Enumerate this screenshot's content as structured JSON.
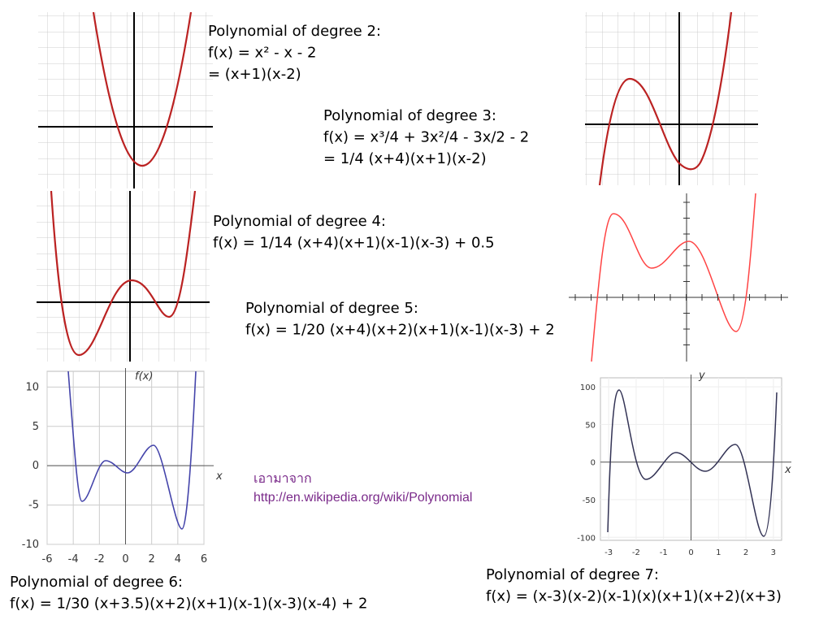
{
  "blocks": [
    {
      "lines": [
        "Polynomial of degree 2:",
        "f(x) = x² - x - 2",
        "= (x+1)(x-2)"
      ]
    },
    {
      "lines": [
        "Polynomial of degree 3:",
        "f(x) = x³/4 + 3x²/4 - 3x/2 - 2",
        "= 1/4 (x+4)(x+1)(x-2)"
      ]
    },
    {
      "lines": [
        "Polynomial of degree 4:",
        "f(x) = 1/14 (x+4)(x+1)(x-1)(x-3) + 0.5"
      ]
    },
    {
      "lines": [
        "Polynomial of degree 5:",
        "f(x) = 1/20 (x+4)(x+2)(x+1)(x-1)(x-3) + 2"
      ]
    },
    {
      "lines": [
        "Polynomial of degree 6:",
        "f(x) = 1/30 (x+3.5)(x+2)(x+1)(x-1)(x-3)(x-4) + 2"
      ]
    },
    {
      "lines": [
        "Polynomial of degree 7:",
        "f(x) = (x-3)(x-2)(x-1)(x)(x+1)(x+2)(x+3)"
      ]
    }
  ],
  "credit": {
    "label": "เอามาจาก",
    "url": "http://en.wikipedia.org/wiki/Polynomial"
  },
  "plots": [
    {
      "xlim": [
        -6,
        6
      ],
      "ylim": [
        -10,
        12
      ],
      "xticks": [
        -6,
        -4,
        -2,
        0,
        2,
        4,
        6
      ],
      "yticks": [
        10,
        5,
        0,
        -5,
        -10
      ],
      "x_label": "x",
      "y_label": "f(x)"
    },
    {
      "xlim": [
        -3.3,
        3.3
      ],
      "ylim": [
        -104,
        112
      ],
      "xticks": [
        -3,
        -2,
        -1,
        0,
        1,
        2,
        3
      ],
      "yticks": [
        100,
        50,
        0,
        -50,
        -100
      ],
      "x_label": "x",
      "y_label": "y"
    }
  ]
}
